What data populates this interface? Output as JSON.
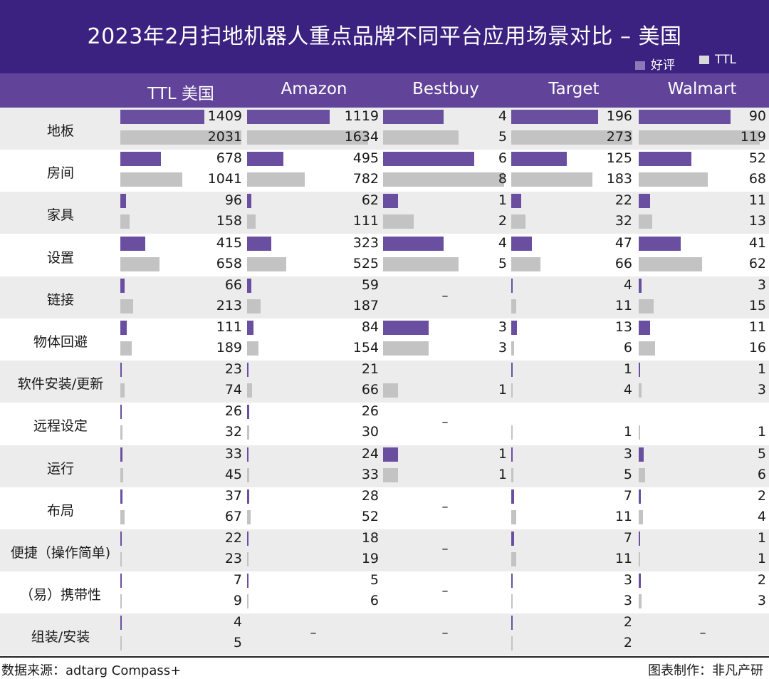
{
  "chart_data": {
    "type": "bar",
    "title": "2023年2月扫地机器人重点品牌不同平台应用场景对比 – 美国",
    "legend": [
      "好评",
      "TTL"
    ],
    "legend_position": "top-right",
    "colors": {
      "好评": "#6a4fa1",
      "TTL": "#c3c3c3",
      "header": "#61439a",
      "title_bg": "#3b2180",
      "stripe": "#ececec"
    },
    "columns": [
      "TTL 美国",
      "Amazon",
      "Bestbuy",
      "Target",
      "Walmart"
    ],
    "categories": [
      "地板",
      "房间",
      "家具",
      "设置",
      "链接",
      "物体回避",
      "软件安装/更新",
      "远程设定",
      "运行",
      "布局",
      "便捷（操作简单)",
      "（易）携带性",
      "组装/安装"
    ],
    "series": [
      {
        "name": "好评",
        "values": {
          "TTL 美国": [
            1409,
            678,
            96,
            415,
            66,
            111,
            23,
            26,
            33,
            37,
            22,
            7,
            4
          ],
          "Amazon": [
            1119,
            495,
            62,
            323,
            59,
            84,
            21,
            26,
            24,
            28,
            18,
            5,
            null
          ],
          "Bestbuy": [
            4,
            6,
            1,
            4,
            null,
            3,
            null,
            null,
            1,
            null,
            null,
            null,
            null
          ],
          "Target": [
            196,
            125,
            22,
            47,
            4,
            13,
            1,
            null,
            3,
            7,
            7,
            3,
            2
          ],
          "Walmart": [
            90,
            52,
            11,
            41,
            3,
            11,
            1,
            null,
            5,
            2,
            1,
            2,
            null
          ]
        }
      },
      {
        "name": "TTL",
        "values": {
          "TTL 美国": [
            2031,
            1041,
            158,
            658,
            213,
            189,
            74,
            32,
            45,
            67,
            23,
            9,
            5
          ],
          "Amazon": [
            1634,
            782,
            111,
            525,
            187,
            154,
            66,
            30,
            33,
            52,
            19,
            6,
            null
          ],
          "Bestbuy": [
            5,
            8,
            2,
            5,
            null,
            3,
            1,
            null,
            1,
            null,
            null,
            null,
            null
          ],
          "Target": [
            273,
            183,
            32,
            66,
            11,
            6,
            4,
            1,
            5,
            11,
            11,
            3,
            2
          ],
          "Walmart": [
            119,
            68,
            13,
            62,
            15,
            16,
            3,
            1,
            6,
            4,
            1,
            3,
            null
          ]
        }
      }
    ],
    "bar_scale_max": {
      "TTL 美国": 2031,
      "Amazon": 1634,
      "Bestbuy": 8,
      "Target": 273,
      "Walmart": 119
    },
    "missing_symbol": "–"
  },
  "footer": {
    "source": "数据来源：adtarg Compass+",
    "credit": "图表制作：非凡产研"
  }
}
